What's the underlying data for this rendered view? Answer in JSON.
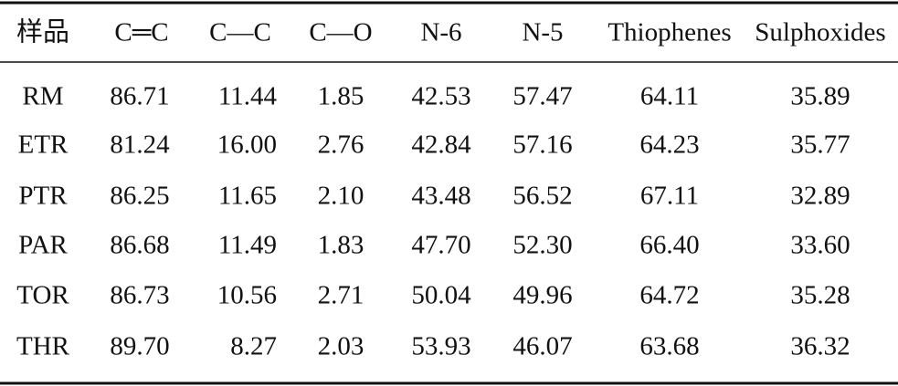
{
  "table": {
    "header": [
      "样品",
      "C═C",
      "C—C",
      "C—O",
      "N-6",
      "N-5",
      "Thiophenes",
      "Sulphoxides"
    ],
    "rows": [
      [
        "RM",
        "86.71",
        "11.44",
        "1.85",
        "42.53",
        "57.47",
        "64.11",
        "35.89"
      ],
      [
        "ETR",
        "81.24",
        "16.00",
        "2.76",
        "42.84",
        "57.16",
        "64.23",
        "35.77"
      ],
      [
        "PTR",
        "86.25",
        "11.65",
        "2.10",
        "43.48",
        "56.52",
        "67.11",
        "32.89"
      ],
      [
        "PAR",
        "86.68",
        "11.49",
        "1.83",
        "47.70",
        "52.30",
        "66.40",
        "33.60"
      ],
      [
        "TOR",
        "86.73",
        "10.56",
        "2.71",
        "50.04",
        "49.96",
        "64.72",
        "35.28"
      ],
      [
        "THR",
        "89.70",
        "8.27",
        "2.03",
        "53.93",
        "46.07",
        "63.68",
        "36.32"
      ]
    ]
  }
}
